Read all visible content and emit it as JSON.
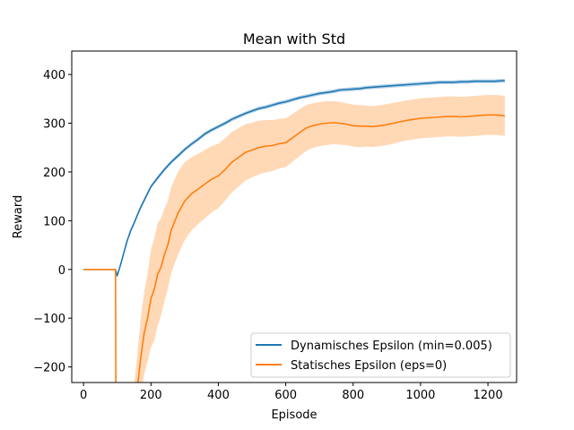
{
  "chart_data": {
    "type": "line",
    "title": "Mean with Std",
    "xlabel": "Episode",
    "ylabel": "Reward",
    "xlim": [
      -35,
      1285
    ],
    "ylim": [
      -232,
      448
    ],
    "xticks": [
      0,
      200,
      400,
      600,
      800,
      1000,
      1200
    ],
    "yticks": [
      -200,
      -100,
      0,
      100,
      200,
      300,
      400
    ],
    "grid": false,
    "legend_position": "lower-right",
    "series": [
      {
        "name": "Dynamisches Epsilon (min=0.005)",
        "color": "#1f77b4",
        "x": [
          0,
          95,
          100,
          110,
          120,
          130,
          140,
          150,
          160,
          170,
          180,
          190,
          200,
          220,
          240,
          260,
          280,
          300,
          320,
          340,
          360,
          380,
          400,
          420,
          440,
          460,
          480,
          500,
          520,
          540,
          560,
          580,
          600,
          620,
          640,
          660,
          680,
          700,
          720,
          740,
          760,
          780,
          800,
          820,
          840,
          860,
          880,
          900,
          920,
          940,
          960,
          980,
          1000,
          1020,
          1040,
          1060,
          1080,
          1100,
          1120,
          1140,
          1160,
          1180,
          1200,
          1220,
          1240,
          1250
        ],
        "mean": [
          0,
          0,
          -13,
          10,
          35,
          60,
          80,
          95,
          112,
          128,
          142,
          156,
          170,
          188,
          205,
          220,
          233,
          246,
          257,
          267,
          278,
          286,
          293,
          300,
          308,
          314,
          320,
          325,
          330,
          333,
          337,
          341,
          344,
          348,
          352,
          355,
          358,
          361,
          363,
          365,
          368,
          369,
          370,
          371,
          373,
          374,
          375,
          376,
          377,
          378,
          379,
          380,
          381,
          382,
          383,
          384,
          384,
          384,
          385,
          385,
          386,
          386,
          386,
          386,
          387,
          387
        ],
        "std": [
          0,
          0,
          3,
          4,
          4,
          4,
          4,
          4,
          4,
          4,
          4,
          4,
          4,
          4,
          4,
          4,
          4,
          4,
          4,
          4,
          4,
          4,
          4,
          4,
          4,
          4,
          4,
          4,
          4,
          4,
          4,
          4,
          4,
          4,
          4,
          4,
          4,
          4,
          4,
          4,
          4,
          4,
          4,
          4,
          4,
          4,
          4,
          4,
          4,
          4,
          4,
          4,
          4,
          4,
          4,
          4,
          4,
          4,
          4,
          4,
          4,
          4,
          4,
          4,
          4,
          4
        ]
      },
      {
        "name": "Statisches Epsilon (eps=0)",
        "color": "#ff7f0e",
        "x": [
          0,
          95,
          96,
          97,
          150,
          160,
          170,
          180,
          190,
          200,
          210,
          220,
          230,
          240,
          250,
          260,
          280,
          300,
          320,
          340,
          360,
          380,
          400,
          420,
          440,
          460,
          480,
          500,
          520,
          540,
          560,
          580,
          600,
          620,
          640,
          660,
          680,
          700,
          720,
          740,
          760,
          780,
          800,
          820,
          840,
          860,
          880,
          900,
          920,
          940,
          960,
          980,
          1000,
          1020,
          1040,
          1060,
          1080,
          1100,
          1120,
          1140,
          1160,
          1180,
          1200,
          1220,
          1240,
          1250
        ],
        "mean": [
          0,
          0,
          -240,
          -300,
          -300,
          -240,
          -180,
          -130,
          -100,
          -60,
          -40,
          -10,
          5,
          30,
          50,
          80,
          115,
          140,
          155,
          165,
          175,
          185,
          192,
          205,
          220,
          230,
          240,
          245,
          250,
          253,
          254,
          258,
          260,
          270,
          280,
          290,
          295,
          298,
          300,
          301,
          300,
          298,
          295,
          294,
          294,
          293,
          295,
          297,
          300,
          303,
          306,
          308,
          310,
          311,
          312,
          313,
          314,
          314,
          313,
          314,
          315,
          316,
          317,
          317,
          316,
          315
        ],
        "std": [
          0,
          0,
          0,
          0,
          60,
          70,
          80,
          85,
          90,
          100,
          105,
          105,
          100,
          95,
          90,
          88,
          85,
          80,
          75,
          72,
          70,
          68,
          66,
          64,
          62,
          60,
          58,
          56,
          55,
          54,
          52,
          51,
          50,
          49,
          48,
          47,
          46,
          45,
          45,
          44,
          44,
          43,
          43,
          43,
          42,
          42,
          42,
          42,
          42,
          41,
          41,
          41,
          41,
          41,
          41,
          41,
          41,
          41,
          41,
          41,
          41,
          41,
          41,
          41,
          41,
          41
        ]
      }
    ]
  }
}
